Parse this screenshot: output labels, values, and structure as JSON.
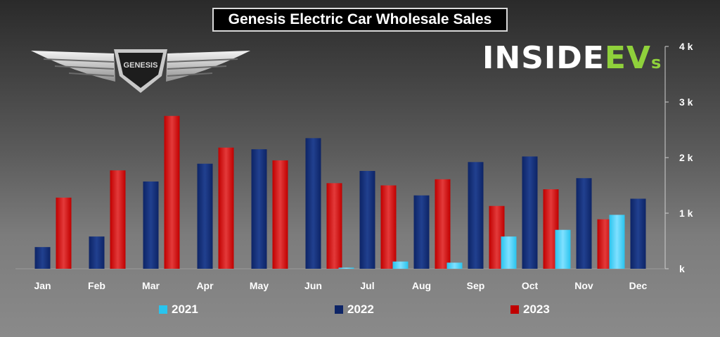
{
  "title": "Genesis Electric Car Wholesale Sales",
  "brand": {
    "part1": "INSIDE",
    "part2": "EV",
    "part3": "s"
  },
  "logo_text": "GENESIS",
  "colors": {
    "y2021": "#29c4ee",
    "y2022": "#0d2466",
    "y2023": "#c00000"
  },
  "chart_data": {
    "type": "bar",
    "title": "Genesis Electric Car Wholesale Sales",
    "categories": [
      "Jan",
      "Feb",
      "Mar",
      "Apr",
      "May",
      "Jun",
      "Jul",
      "Aug",
      "Sep",
      "Oct",
      "Nov",
      "Dec"
    ],
    "series": [
      {
        "name": "2021",
        "values": [
          0,
          0,
          0,
          0,
          0,
          0,
          20,
          130,
          110,
          580,
          700,
          970
        ]
      },
      {
        "name": "2022",
        "values": [
          390,
          580,
          1570,
          1890,
          2150,
          2350,
          1760,
          1320,
          1920,
          2020,
          1630,
          1260
        ]
      },
      {
        "name": "2023",
        "values": [
          1280,
          1770,
          2750,
          2180,
          1950,
          1540,
          1500,
          1610,
          1130,
          1430,
          890,
          null
        ]
      }
    ],
    "ylim": [
      0,
      4000
    ],
    "yticks": [
      "k",
      "1 k",
      "2 k",
      "3 k",
      "4 k"
    ],
    "y_axis_position": "right",
    "legend": "bottom"
  }
}
